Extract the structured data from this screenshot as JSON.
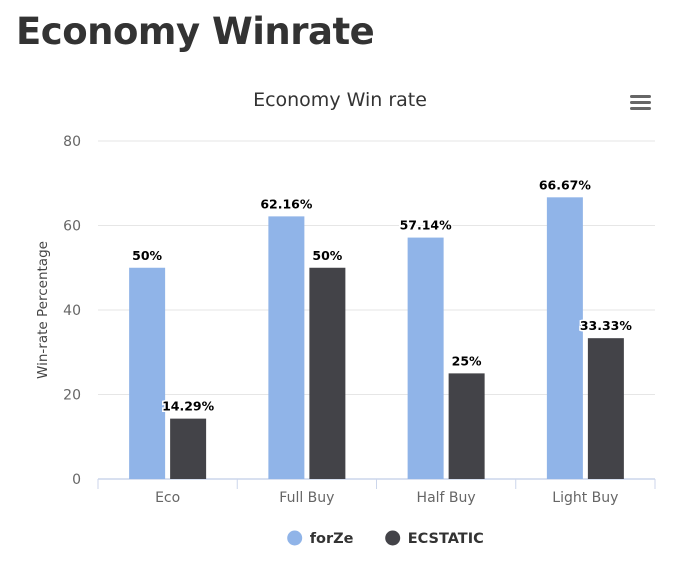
{
  "page": {
    "heading": "Economy Winrate"
  },
  "chart_data": {
    "type": "bar",
    "title": "Economy Win rate",
    "xlabel": "",
    "ylabel": "Win-rate Percentage",
    "ylim": [
      0,
      80
    ],
    "yticks": [
      0,
      20,
      40,
      60,
      80
    ],
    "grid": true,
    "legend_position": "bottom-center",
    "categories": [
      "Eco",
      "Full Buy",
      "Half Buy",
      "Light Buy"
    ],
    "series": [
      {
        "name": "forZe",
        "color": "#90b4e8",
        "values": [
          50,
          62.16,
          57.14,
          66.67
        ],
        "labels": [
          "50%",
          "62.16%",
          "57.14%",
          "66.67%"
        ]
      },
      {
        "name": "ECSTATIC",
        "color": "#434348",
        "values": [
          14.29,
          50,
          25,
          33.33
        ],
        "labels": [
          "14.29%",
          "50%",
          "25%",
          "33.33%"
        ]
      }
    ]
  },
  "menu": {
    "icon": "hamburger-menu-icon"
  }
}
